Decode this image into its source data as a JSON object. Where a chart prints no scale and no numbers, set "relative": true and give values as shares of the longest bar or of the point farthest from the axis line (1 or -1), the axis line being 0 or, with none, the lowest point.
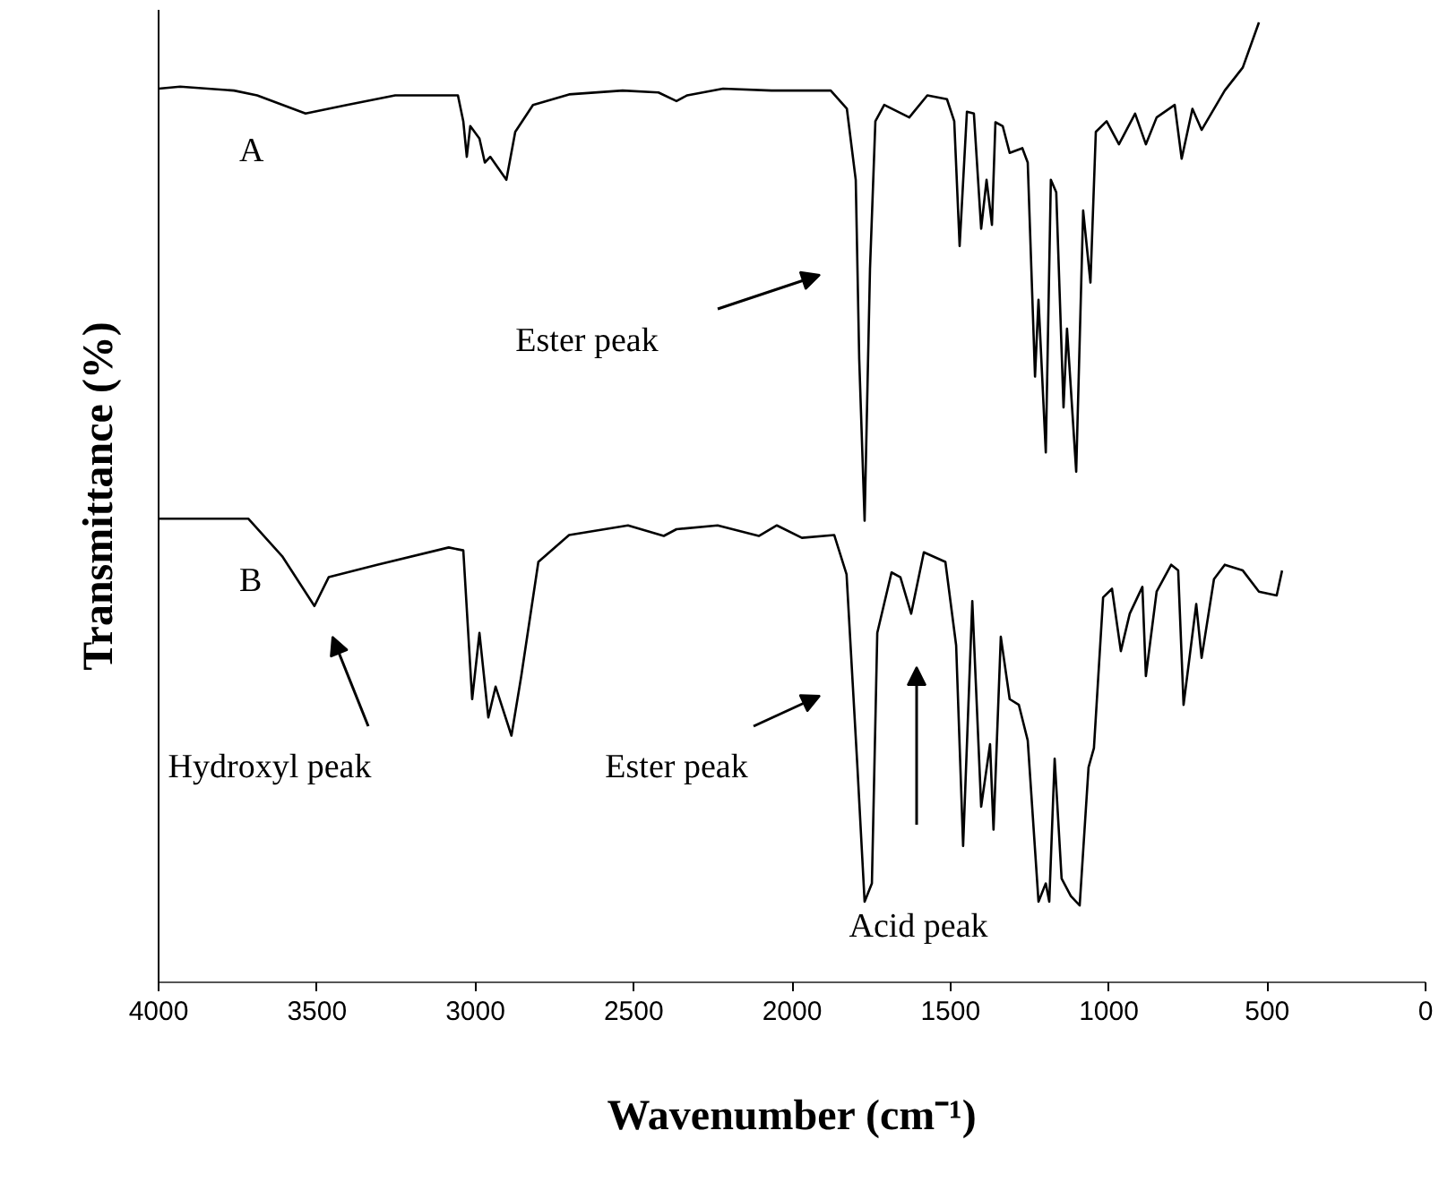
{
  "chart_data": {
    "type": "line",
    "relative": true,
    "xlabel": "Wavenumber (cm⁻¹)",
    "ylabel": "Transmittance (%)",
    "xlim": [
      4000,
      0
    ],
    "xticks": [
      4000,
      3500,
      3000,
      2500,
      2000,
      1500,
      1000,
      500,
      0
    ],
    "tick_labels": "x",
    "grid": false,
    "marker": "none",
    "line_style": "solid",
    "series": [
      {
        "name": "A",
        "color": "#000000",
        "x": [
          4000,
          3932,
          3762,
          3689,
          3536,
          3406,
          3253,
          3055,
          3038,
          3027,
          3016,
          2987,
          2970,
          2953,
          2902,
          2874,
          2818,
          2704,
          2535,
          2422,
          2365,
          2331,
          2218,
          2065,
          1878,
          1827,
          1799,
          1788,
          1771,
          1754,
          1737,
          1709,
          1630,
          1573,
          1511,
          1488,
          1471,
          1448,
          1426,
          1403,
          1386,
          1369,
          1358,
          1335,
          1313,
          1273,
          1256,
          1233,
          1222,
          1199,
          1183,
          1166,
          1143,
          1132,
          1103,
          1081,
          1058,
          1041,
          1007,
          968,
          917,
          883,
          849,
          792,
          770,
          736,
          707,
          634,
          577,
          526
        ],
        "values": [
          0.931,
          0.933,
          0.929,
          0.924,
          0.905,
          0.914,
          0.924,
          0.924,
          0.897,
          0.86,
          0.892,
          0.879,
          0.854,
          0.86,
          0.836,
          0.886,
          0.914,
          0.925,
          0.929,
          0.927,
          0.918,
          0.924,
          0.931,
          0.929,
          0.929,
          0.91,
          0.836,
          0.649,
          0.481,
          0.743,
          0.897,
          0.914,
          0.901,
          0.924,
          0.92,
          0.897,
          0.767,
          0.907,
          0.905,
          0.785,
          0.836,
          0.789,
          0.896,
          0.892,
          0.864,
          0.869,
          0.854,
          0.631,
          0.711,
          0.552,
          0.836,
          0.823,
          0.599,
          0.681,
          0.532,
          0.804,
          0.729,
          0.886,
          0.897,
          0.873,
          0.905,
          0.873,
          0.901,
          0.914,
          0.858,
          0.91,
          0.888,
          0.929,
          0.953,
          1.0
        ]
      },
      {
        "name": "B",
        "color": "#000000",
        "x": [
          4000,
          3717,
          3610,
          3508,
          3463,
          3310,
          3084,
          3038,
          3010,
          2987,
          2959,
          2936,
          2886,
          2855,
          2801,
          2704,
          2518,
          2405,
          2365,
          2235,
          2105,
          2048,
          1969,
          1867,
          1828,
          1794,
          1771,
          1748,
          1731,
          1686,
          1658,
          1624,
          1584,
          1516,
          1482,
          1460,
          1431,
          1403,
          1375,
          1364,
          1341,
          1313,
          1284,
          1256,
          1222,
          1199,
          1188,
          1171,
          1149,
          1120,
          1092,
          1064,
          1047,
          1018,
          990,
          962,
          934,
          894,
          883,
          849,
          803,
          781,
          764,
          724,
          707,
          668,
          634,
          577,
          526,
          470,
          453
        ],
        "values": [
          0.483,
          0.483,
          0.444,
          0.392,
          0.422,
          0.435,
          0.453,
          0.45,
          0.295,
          0.364,
          0.276,
          0.308,
          0.257,
          0.319,
          0.438,
          0.466,
          0.476,
          0.465,
          0.472,
          0.476,
          0.465,
          0.476,
          0.463,
          0.466,
          0.425,
          0.226,
          0.084,
          0.103,
          0.364,
          0.427,
          0.422,
          0.384,
          0.448,
          0.438,
          0.351,
          0.142,
          0.397,
          0.183,
          0.248,
          0.159,
          0.36,
          0.295,
          0.289,
          0.252,
          0.084,
          0.103,
          0.084,
          0.233,
          0.108,
          0.09,
          0.08,
          0.224,
          0.244,
          0.401,
          0.41,
          0.345,
          0.384,
          0.412,
          0.319,
          0.407,
          0.435,
          0.429,
          0.289,
          0.394,
          0.338,
          0.42,
          0.435,
          0.429,
          0.407,
          0.403,
          0.429
        ]
      }
    ],
    "annotations": [
      "Ester peak",
      "Hydroxyl peak",
      "Ester peak",
      "Acid peak"
    ]
  }
}
